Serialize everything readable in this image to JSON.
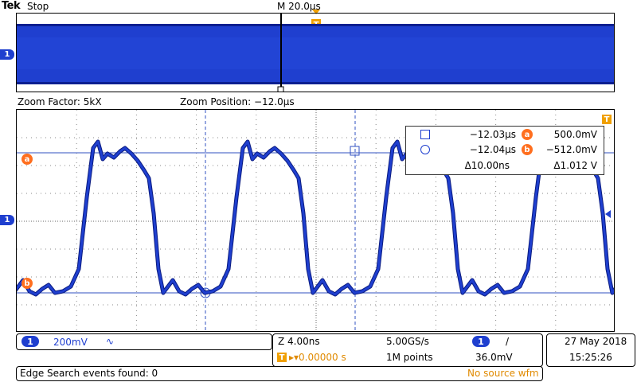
{
  "header": {
    "brand": "Tek",
    "acq_state": "Stop",
    "timebase": "M 20.0µs"
  },
  "zoom_info": {
    "factor": "Zoom Factor: 5kX",
    "position": "Zoom Position: −12.0µs"
  },
  "markers": {
    "channel": "1",
    "ref_a": "a",
    "ref_b": "b",
    "trigger": "T"
  },
  "cursors": {
    "row1": {
      "time": "−12.03µs",
      "ref": "a",
      "level": "500.0mV"
    },
    "row2": {
      "time": "−12.04µs",
      "ref": "b",
      "level": "−512.0mV"
    },
    "row3": {
      "delta_time": "Δ10.00ns",
      "delta_level": "Δ1.012 V"
    }
  },
  "status": {
    "channel": {
      "num": "1",
      "scale": "200mV",
      "coupling_icon": "∿"
    },
    "zoom_scale": "Z 4.00ns",
    "trigger_pos": "▸▾0.00000 s",
    "sample_rate": "5.00GS/s",
    "record": "1M points",
    "trigger_channel": "1",
    "trigger_slope": "/",
    "trigger_level": "36.0mV",
    "date": "27 May  2018",
    "time": "15:25:26",
    "search": "Edge Search events found: 0",
    "wfm": "No source wfm"
  },
  "colors": {
    "trace": "#1f3fcf",
    "grid_cursor": "#3050c0",
    "orange": "#ff6f1f",
    "trigger": "#f0a000"
  }
}
